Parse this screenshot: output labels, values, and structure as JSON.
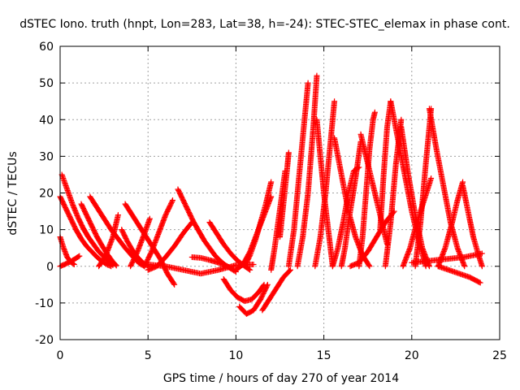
{
  "chart_data": {
    "type": "scatter",
    "title": "dSTEC Iono. truth (hnpt, Lon=283, Lat=38, h=-24): STEC-STEC_elemax in phase cont.",
    "xlabel": "GPS time / hours of day 270 of year 2014",
    "ylabel": "dSTEC  / TECUs",
    "xlim": [
      0,
      25
    ],
    "ylim": [
      -20,
      60
    ],
    "x_ticks": [
      "0",
      "5",
      "10",
      "15",
      "20",
      "25"
    ],
    "y_ticks": [
      "-20",
      "-10",
      "0",
      "10",
      "20",
      "30",
      "40",
      "50",
      "60"
    ],
    "grid": true,
    "marker": "plus",
    "color": "#ff0000",
    "series": [
      {
        "x": [
          0.0,
          0.2,
          0.4,
          0.6,
          0.8
        ],
        "values": [
          8,
          5,
          2.5,
          1.2,
          0.5
        ]
      },
      {
        "x": [
          0.0,
          0.3,
          0.6,
          0.9,
          1.2,
          1.5,
          1.8,
          2.1,
          2.4,
          2.7,
          2.9
        ],
        "values": [
          19,
          16,
          13,
          10,
          7.5,
          5.5,
          4,
          2.5,
          1.3,
          0.4,
          0
        ]
      },
      {
        "x": [
          0.1,
          0.4,
          0.7,
          1.0,
          1.3,
          1.6,
          1.9,
          2.2,
          2.5,
          2.8,
          3.0
        ],
        "values": [
          25,
          21,
          17,
          13.5,
          10.5,
          8,
          6,
          4,
          2.6,
          1.2,
          0.3
        ]
      },
      {
        "x": [
          0.0,
          0.3,
          0.6,
          0.9,
          1.1
        ],
        "values": [
          0,
          0.6,
          1.3,
          2.2,
          2.8
        ]
      },
      {
        "x": [
          1.2,
          1.5,
          1.8,
          2.1,
          2.4,
          2.7,
          3.0,
          3.2
        ],
        "values": [
          17,
          14,
          11,
          8,
          5.5,
          3.2,
          1.2,
          0.2
        ]
      },
      {
        "x": [
          1.7,
          2.1,
          2.5,
          2.9,
          3.3,
          3.7,
          4.1,
          4.5,
          4.8
        ],
        "values": [
          19,
          16,
          13,
          10,
          7.5,
          5,
          2.8,
          0.8,
          0
        ]
      },
      {
        "x": [
          2.2,
          2.6,
          3.0,
          3.3
        ],
        "values": [
          0,
          3,
          8,
          14
        ]
      },
      {
        "x": [
          3.5,
          3.8,
          4.1,
          4.4,
          4.7,
          5.0
        ],
        "values": [
          10,
          7,
          4.5,
          2.5,
          1,
          0
        ]
      },
      {
        "x": [
          3.7,
          4.1,
          4.5,
          4.9,
          5.3,
          5.7,
          6.1,
          6.5
        ],
        "values": [
          17,
          14,
          11,
          8,
          5,
          2,
          -2,
          -5
        ]
      },
      {
        "x": [
          4.0,
          4.4,
          4.8,
          5.1
        ],
        "values": [
          0,
          4,
          9,
          13
        ]
      },
      {
        "x": [
          4.8,
          5.2,
          5.6,
          6.0,
          6.4
        ],
        "values": [
          0,
          4,
          9,
          14,
          18
        ]
      },
      {
        "x": [
          5.0,
          5.5,
          6.0,
          6.5,
          7.0,
          7.5
        ],
        "values": [
          -1,
          0,
          2.5,
          5.5,
          9,
          12
        ]
      },
      {
        "x": [
          6.7,
          7.0,
          7.3,
          7.6,
          7.9,
          8.2,
          8.5,
          8.8,
          9.1,
          9.4,
          9.7
        ],
        "values": [
          21,
          18,
          15,
          12,
          9.5,
          7,
          5,
          3,
          1.5,
          0.3,
          -0.5
        ]
      },
      {
        "x": [
          5.0,
          6.0,
          7.0,
          8.0,
          9.0,
          10.0,
          11.0
        ],
        "values": [
          0.5,
          0,
          -1,
          -2,
          -1,
          0.3,
          0.5
        ]
      },
      {
        "x": [
          7.5,
          8.0,
          8.5,
          9.0,
          9.5,
          10.0
        ],
        "values": [
          2.5,
          2.3,
          1.7,
          1,
          0,
          -1.5
        ]
      },
      {
        "x": [
          8.5,
          8.9,
          9.3,
          9.7,
          10.1,
          10.5,
          10.8
        ],
        "values": [
          12,
          9,
          6,
          3.5,
          1.5,
          0,
          -1
        ]
      },
      {
        "x": [
          9.3,
          9.7,
          10.1,
          10.5,
          10.9,
          11.3,
          11.6
        ],
        "values": [
          -3.5,
          -6.5,
          -8.5,
          -9.5,
          -9,
          -7,
          -5
        ]
      },
      {
        "x": [
          10.2,
          10.6,
          11.0,
          11.4,
          11.8
        ],
        "values": [
          -11,
          -13,
          -12,
          -9,
          -5
        ]
      },
      {
        "x": [
          10.0,
          10.4,
          10.8,
          11.2,
          11.6,
          12.0
        ],
        "values": [
          -1,
          0.5,
          4,
          9,
          14,
          19
        ]
      },
      {
        "x": [
          10.5,
          10.8,
          11.1,
          11.4,
          11.7,
          12.0
        ],
        "values": [
          0,
          3,
          7,
          12,
          17,
          23
        ]
      },
      {
        "x": [
          11.5,
          11.9,
          12.3,
          12.7,
          13.1
        ],
        "values": [
          -12,
          -9,
          -6,
          -3,
          -1
        ]
      },
      {
        "x": [
          12.0,
          12.2,
          12.4,
          12.6,
          12.8
        ],
        "values": [
          -1,
          5,
          12,
          19,
          26
        ]
      },
      {
        "x": [
          12.5,
          12.7,
          12.9,
          13.0
        ],
        "values": [
          8,
          17,
          26,
          31
        ]
      },
      {
        "x": [
          13.0,
          13.3,
          13.6,
          13.9,
          14.1
        ],
        "values": [
          0,
          10,
          25,
          40,
          50
        ]
      },
      {
        "x": [
          13.5,
          13.8,
          14.1,
          14.4,
          14.6
        ],
        "values": [
          0,
          8,
          20,
          38,
          52
        ]
      },
      {
        "x": [
          14.6,
          14.8,
          15.0,
          15.2,
          15.5
        ],
        "values": [
          40,
          30,
          20,
          12,
          0
        ]
      },
      {
        "x": [
          14.5,
          14.8,
          15.1,
          15.4,
          15.6
        ],
        "values": [
          0,
          8,
          20,
          35,
          45
        ]
      },
      {
        "x": [
          15.6,
          16.0,
          16.4,
          16.8,
          17.2,
          17.6
        ],
        "values": [
          35,
          25,
          15,
          8,
          3,
          0
        ]
      },
      {
        "x": [
          15.5,
          15.8,
          16.1,
          16.4,
          16.7,
          17.0
        ],
        "values": [
          0,
          5,
          12,
          20,
          26,
          27
        ]
      },
      {
        "x": [
          16.0,
          16.2,
          16.4,
          16.6,
          16.8,
          17.1
        ],
        "values": [
          0,
          5,
          12,
          18,
          24,
          34
        ]
      },
      {
        "x": [
          17.1,
          17.4,
          17.7,
          18.0,
          18.3,
          18.6
        ],
        "values": [
          36,
          30,
          24,
          18,
          12,
          6
        ]
      },
      {
        "x": [
          17.0,
          17.2,
          17.4,
          17.6,
          17.8,
          17.9
        ],
        "values": [
          0,
          8,
          20,
          32,
          40,
          42
        ]
      },
      {
        "x": [
          16.5,
          17.0,
          17.5,
          18.0,
          18.5,
          19.0
        ],
        "values": [
          0,
          1,
          4,
          8,
          12,
          15
        ]
      },
      {
        "x": [
          18.2,
          18.4,
          18.6,
          18.8
        ],
        "values": [
          10,
          25,
          38,
          45
        ]
      },
      {
        "x": [
          18.8,
          19.2,
          19.6,
          20.0,
          20.4,
          20.8
        ],
        "values": [
          45,
          35,
          25,
          15,
          7,
          0
        ]
      },
      {
        "x": [
          18.5,
          18.8,
          19.1,
          19.4
        ],
        "values": [
          0,
          12,
          28,
          40
        ]
      },
      {
        "x": [
          19.4,
          19.8,
          20.2,
          20.6,
          21.0
        ],
        "values": [
          38,
          25,
          14,
          5,
          0
        ]
      },
      {
        "x": [
          19.5,
          19.9,
          20.3,
          20.7,
          21.1
        ],
        "values": [
          0,
          5,
          12,
          18,
          24
        ]
      },
      {
        "x": [
          20.2,
          20.5,
          20.8,
          21.1
        ],
        "values": [
          0,
          12,
          28,
          43
        ]
      },
      {
        "x": [
          21.0,
          21.4,
          21.8,
          22.2,
          22.6,
          23.0
        ],
        "values": [
          43,
          32,
          22,
          12,
          5,
          0
        ]
      },
      {
        "x": [
          21.5,
          21.9,
          22.3,
          22.6,
          22.9
        ],
        "values": [
          0,
          5,
          12,
          18,
          23
        ]
      },
      {
        "x": [
          22.9,
          23.2,
          23.5,
          23.8,
          24.0
        ],
        "values": [
          22,
          15,
          8,
          3,
          0
        ]
      },
      {
        "x": [
          21.5,
          22.1,
          22.7,
          23.3,
          23.9
        ],
        "values": [
          0,
          -1,
          -2,
          -3,
          -4.5
        ]
      },
      {
        "x": [
          20.0,
          21.0,
          22.0,
          23.0,
          24.0
        ],
        "values": [
          1,
          1.5,
          2,
          2.5,
          3.5
        ]
      }
    ]
  }
}
